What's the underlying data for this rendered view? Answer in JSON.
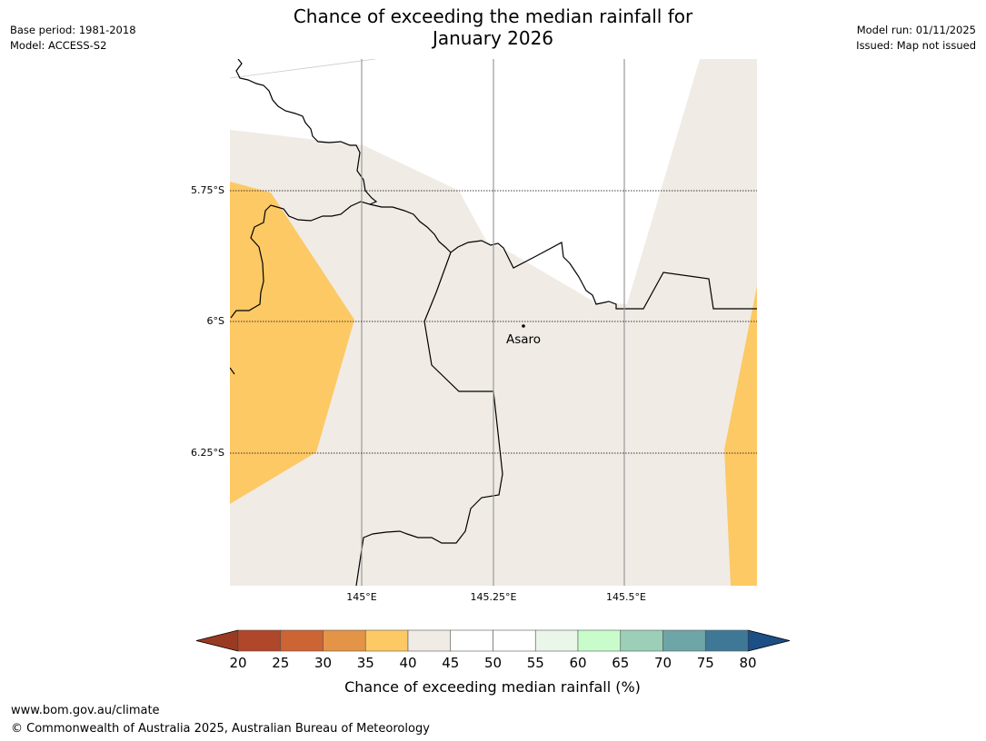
{
  "header": {
    "title_line1": "Chance of exceeding the median rainfall for",
    "title_line2": "January 2026",
    "base_period": "Base period: 1981-2018",
    "model": "Model: ACCESS-S2",
    "model_run": "Model run: 01/11/2025",
    "issued": "Issued: Map not issued"
  },
  "map": {
    "lat_labels": [
      "5.75°S",
      "6°S",
      "6.25°S"
    ],
    "lon_labels": [
      "145°E",
      "145.25°E",
      "145.5°E"
    ],
    "place": "Asaro"
  },
  "colorbar": {
    "label": "Chance of exceeding median rainfall (%)",
    "ticks": [
      "20",
      "25",
      "30",
      "35",
      "40",
      "45",
      "50",
      "55",
      "60",
      "65",
      "70",
      "75",
      "80"
    ],
    "under_color": "#9b3a22",
    "over_color": "#1b4f85",
    "colors": [
      "#b0462a",
      "#cd6433",
      "#e49446",
      "#fdc965",
      "#f0ebe5",
      "#ffffff",
      "#ffffff",
      "#ebf6ea",
      "#c8fccb",
      "#9bcfb8",
      "#6ea5a6",
      "#3f7896"
    ]
  },
  "footer": {
    "url": "www.bom.gov.au/climate",
    "copyright": "© Commonwealth of Australia 2025, Australian Bureau of Meteorology"
  }
}
